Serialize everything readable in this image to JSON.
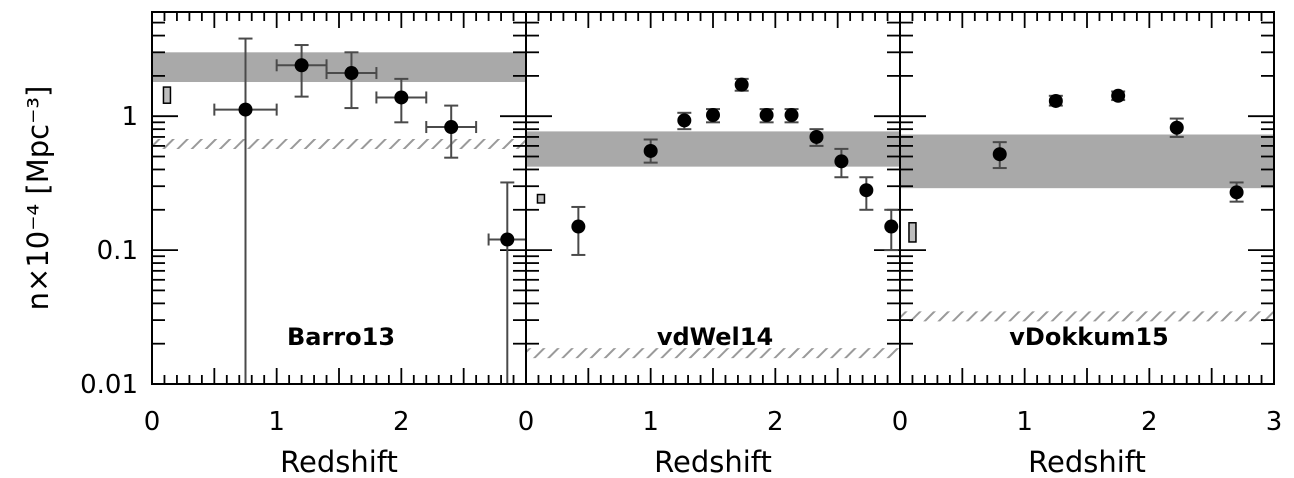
{
  "figure": {
    "ylabel": "n×10⁻⁴ [Mpc⁻³]",
    "xlabel": "Redshift"
  },
  "chart_data": [
    {
      "type": "scatter",
      "panel_label": "Barro13",
      "xlabel": "Redshift",
      "ylabel": "n×10⁻⁴ [Mpc⁻³]",
      "xlim": [
        0,
        3
      ],
      "ylim": [
        0.01,
        6
      ],
      "yscale": "log",
      "x_ticks": [
        "0",
        "1",
        "2"
      ],
      "y_ticks": [
        "0.01",
        "0.1",
        "1"
      ],
      "band": [
        1.8,
        3.0
      ],
      "hatched_level": 0.62,
      "marker_box": {
        "x": 0.12,
        "y_low": 1.25,
        "y_high": 1.65
      },
      "points": [
        {
          "x": 0.75,
          "y": 1.12,
          "xerr": 0.25,
          "ylow": 0.01,
          "yhigh": 3.8
        },
        {
          "x": 1.2,
          "y": 2.4,
          "xerr": 0.2,
          "ylow": 1.4,
          "yhigh": 3.4
        },
        {
          "x": 1.6,
          "y": 2.1,
          "xerr": 0.2,
          "ylow": 1.15,
          "yhigh": 3.0
        },
        {
          "x": 2.0,
          "y": 1.38,
          "xerr": 0.2,
          "ylow": 0.9,
          "yhigh": 1.9
        },
        {
          "x": 2.4,
          "y": 0.83,
          "xerr": 0.2,
          "ylow": 0.49,
          "yhigh": 1.2
        },
        {
          "x": 2.85,
          "y": 0.12,
          "xerr": 0.15,
          "ylow": 0.01,
          "yhigh": 0.32
        }
      ]
    },
    {
      "type": "scatter",
      "panel_label": "vdWel14",
      "xlabel": "Redshift",
      "ylabel": "",
      "xlim": [
        0,
        3
      ],
      "ylim": [
        0.01,
        6
      ],
      "yscale": "log",
      "x_ticks": [
        "0",
        "1",
        "2"
      ],
      "y_ticks": [],
      "band": [
        0.42,
        0.77
      ],
      "hatched_level": 0.017,
      "marker_box": {
        "x": 0.12,
        "y_low": 0.225,
        "y_high": 0.26
      },
      "points": [
        {
          "x": 0.42,
          "y": 0.15,
          "ylow": 0.092,
          "yhigh": 0.21
        },
        {
          "x": 1.0,
          "y": 0.55,
          "ylow": 0.45,
          "yhigh": 0.67
        },
        {
          "x": 1.27,
          "y": 0.93,
          "ylow": 0.8,
          "yhigh": 1.06
        },
        {
          "x": 1.5,
          "y": 1.02,
          "ylow": 0.9,
          "yhigh": 1.13
        },
        {
          "x": 1.73,
          "y": 1.72,
          "ylow": 1.55,
          "yhigh": 1.9
        },
        {
          "x": 1.93,
          "y": 1.02,
          "ylow": 0.9,
          "yhigh": 1.13
        },
        {
          "x": 2.13,
          "y": 1.02,
          "ylow": 0.9,
          "yhigh": 1.13
        },
        {
          "x": 2.33,
          "y": 0.7,
          "ylow": 0.6,
          "yhigh": 0.8
        },
        {
          "x": 2.53,
          "y": 0.46,
          "ylow": 0.35,
          "yhigh": 0.57
        },
        {
          "x": 2.73,
          "y": 0.28,
          "ylow": 0.2,
          "yhigh": 0.35
        },
        {
          "x": 2.93,
          "y": 0.15,
          "ylow": 0.1,
          "yhigh": 0.2
        }
      ]
    },
    {
      "type": "scatter",
      "panel_label": "vDokkum15",
      "xlabel": "Redshift",
      "ylabel": "",
      "xlim": [
        0,
        3
      ],
      "ylim": [
        0.01,
        6
      ],
      "yscale": "log",
      "x_ticks": [
        "0",
        "1",
        "2",
        "3"
      ],
      "y_ticks": [],
      "band": [
        0.29,
        0.73
      ],
      "hatched_level": 0.032,
      "marker_box": {
        "x": 0.1,
        "y_low": 0.115,
        "y_high": 0.16
      },
      "points": [
        {
          "x": 0.8,
          "y": 0.52,
          "ylow": 0.41,
          "yhigh": 0.64
        },
        {
          "x": 1.25,
          "y": 1.3,
          "ylow": 1.2,
          "yhigh": 1.42
        },
        {
          "x": 1.75,
          "y": 1.42,
          "ylow": 1.32,
          "yhigh": 1.53
        },
        {
          "x": 2.22,
          "y": 0.82,
          "ylow": 0.7,
          "yhigh": 0.96
        },
        {
          "x": 2.7,
          "y": 0.27,
          "ylow": 0.23,
          "yhigh": 0.32
        }
      ]
    }
  ]
}
